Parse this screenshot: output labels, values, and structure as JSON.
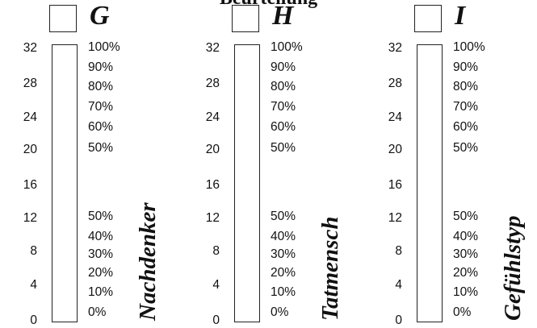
{
  "header_fragment": "Beurteilung",
  "scale_values": [
    "32",
    "28",
    "24",
    "20",
    "16",
    "12",
    "8",
    "4",
    "0"
  ],
  "percent_upper": [
    "100%",
    "90%",
    "80%",
    "70%",
    "60%",
    "50%"
  ],
  "percent_lower": [
    "50%",
    "40%",
    "30%",
    "20%",
    "10%",
    "0%"
  ],
  "columns": [
    {
      "letter": "G",
      "type_label": "Nachdenker"
    },
    {
      "letter": "H",
      "type_label": "Tatmensch"
    },
    {
      "letter": "I",
      "type_label": "Gefühlstyp"
    }
  ]
}
